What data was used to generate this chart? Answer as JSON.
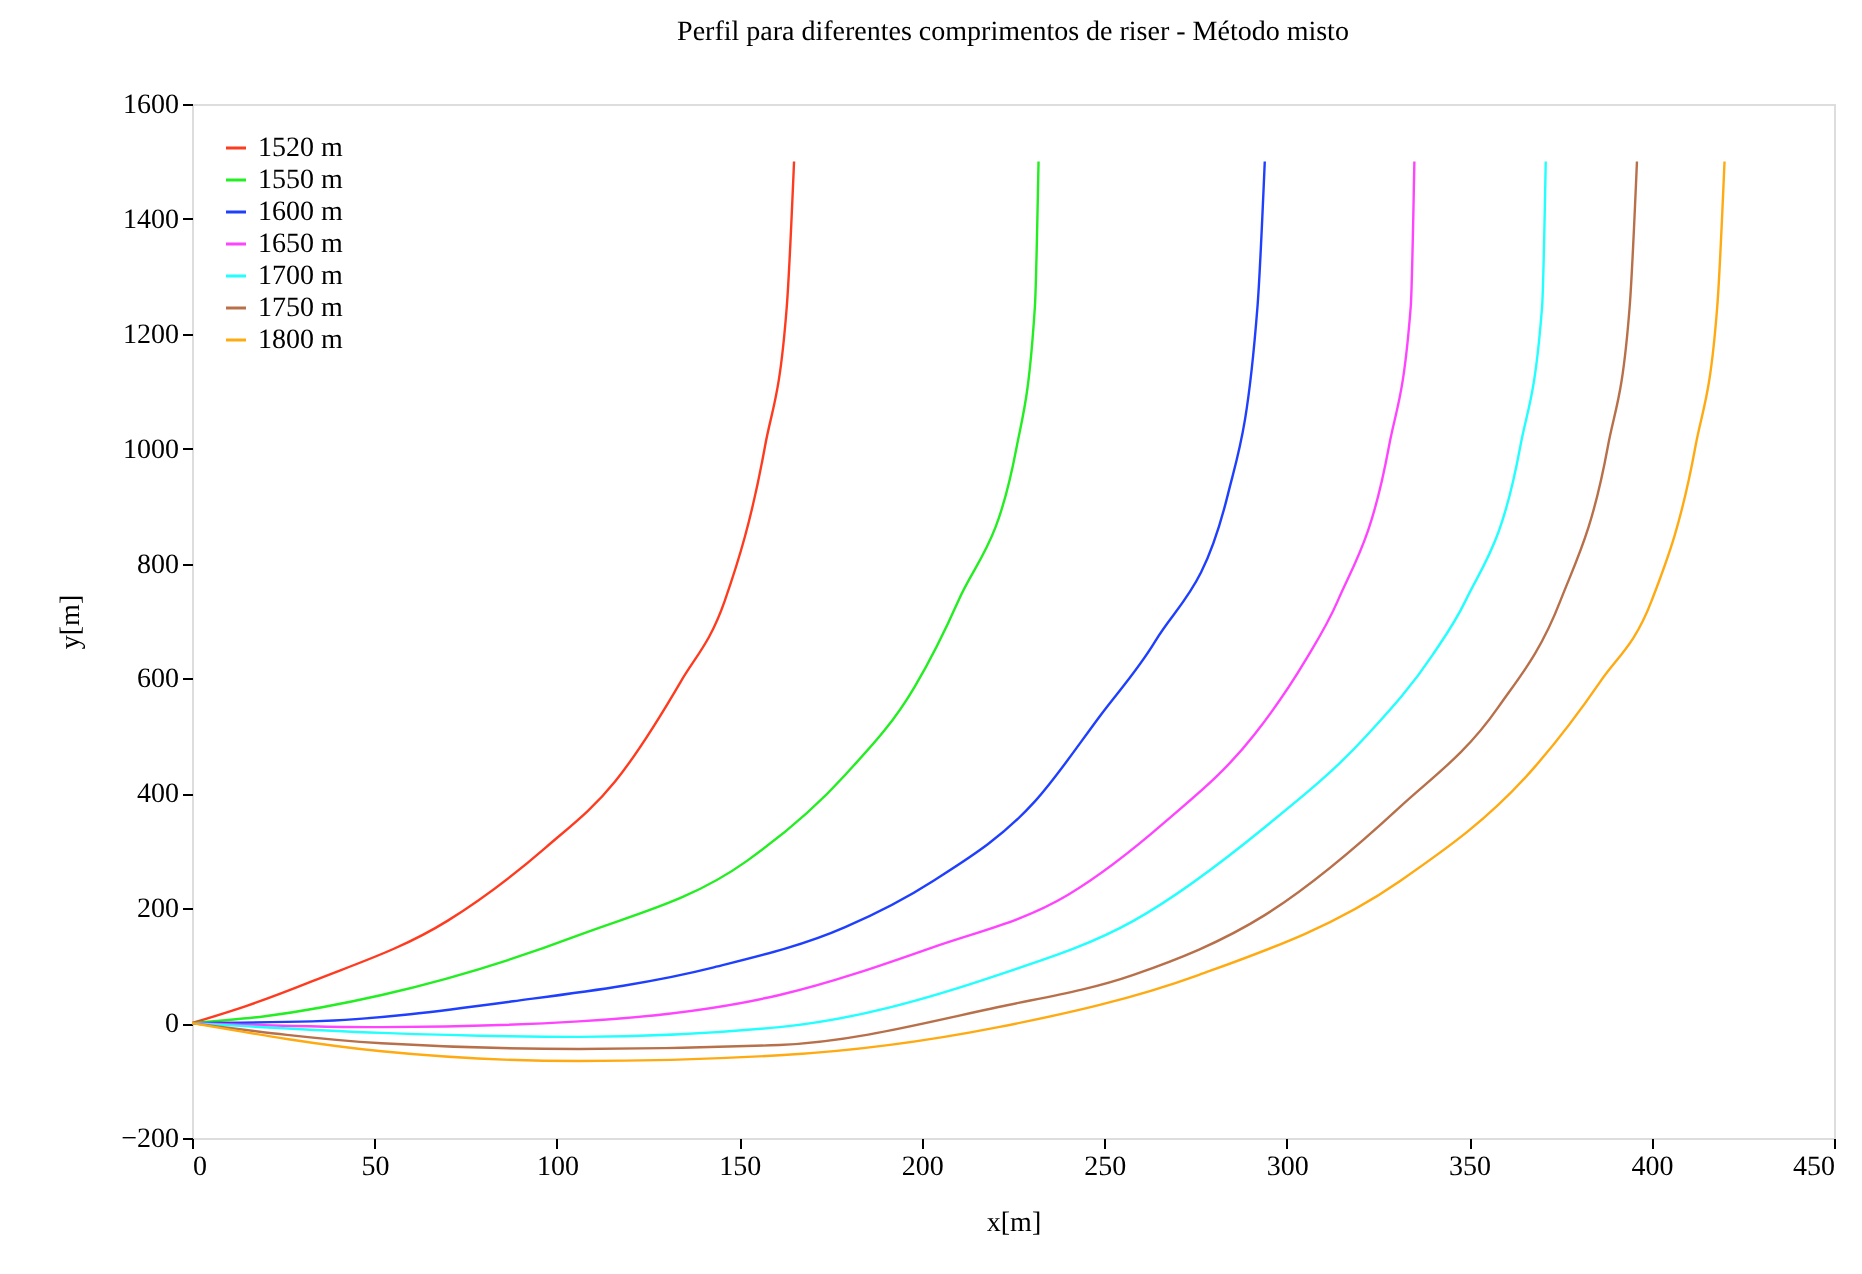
{
  "chart_data": {
    "type": "line",
    "title": "Perfil para diferentes comprimentos de riser - Método misto",
    "xlabel": "x[m]",
    "ylabel": "y[m]",
    "xlim": [
      0,
      450
    ],
    "xticks": [
      0,
      50,
      100,
      150,
      200,
      250,
      300,
      350,
      400,
      450
    ],
    "ylim": [
      -200,
      1600
    ],
    "yticks": [
      -200,
      0,
      200,
      400,
      600,
      800,
      1000,
      1200,
      1400,
      1600
    ],
    "grid": false,
    "legend": "top left",
    "marker": "none",
    "line_style": "solid",
    "series": [
      {
        "name": "1520 m",
        "color": "#ff3b1f",
        "x": [
          0,
          15,
          33,
          70,
          97,
          116,
          134,
          146,
          157,
          163,
          165
        ],
        "values": [
          0,
          30,
          73,
          178,
          306,
          421,
          595,
          735,
          1003,
          1247,
          1500
        ]
      },
      {
        "name": "1550 m",
        "color": "#22ee22",
        "x": [
          0,
          20,
          52,
          106,
          152,
          179,
          198,
          210,
          226,
          231,
          232
        ],
        "values": [
          0,
          12,
          49,
          153,
          282,
          432,
          585,
          735,
          1003,
          1247,
          1500
        ]
      },
      {
        "name": "1600 m",
        "color": "#1f3fff",
        "x": [
          0,
          33,
          88,
          143,
          179,
          203,
          231,
          249,
          264,
          284,
          292,
          294
        ],
        "values": [
          0,
          3,
          38,
          97,
          167,
          247,
          386,
          536,
          665,
          923,
          1247,
          1500
        ]
      },
      {
        "name": "1650 m",
        "color": "#ff44ff",
        "x": [
          0,
          52,
          106,
          161,
          203,
          240,
          267,
          291,
          305,
          314,
          328,
          334,
          335
        ],
        "values": [
          0,
          -7,
          3,
          49,
          132,
          223,
          352,
          501,
          630,
          735,
          1003,
          1247,
          1500
        ]
      },
      {
        "name": "1700 m",
        "color": "#22ffff",
        "x": [
          0,
          52,
          106,
          161,
          221,
          258,
          294,
          322,
          340,
          349,
          364,
          370,
          371
        ],
        "values": [
          0,
          -17,
          -24,
          -7,
          84,
          178,
          341,
          501,
          641,
          735,
          1003,
          1247,
          1500
        ]
      },
      {
        "name": "1750 m",
        "color": "#b8704a",
        "x": [
          0,
          52,
          106,
          161,
          221,
          258,
          294,
          331,
          358,
          375,
          388,
          394,
          396
        ],
        "values": [
          0,
          -35,
          -45,
          -38,
          28,
          84,
          188,
          376,
          550,
          735,
          1003,
          1247,
          1500
        ]
      },
      {
        "name": "1800 m",
        "color": "#ffaa11",
        "x": [
          0,
          52,
          106,
          161,
          221,
          276,
          331,
          368,
          386,
          400,
          412,
          418,
          420
        ],
        "values": [
          0,
          -49,
          -66,
          -56,
          -7,
          84,
          247,
          446,
          595,
          735,
          1003,
          1247,
          1500
        ]
      }
    ]
  }
}
